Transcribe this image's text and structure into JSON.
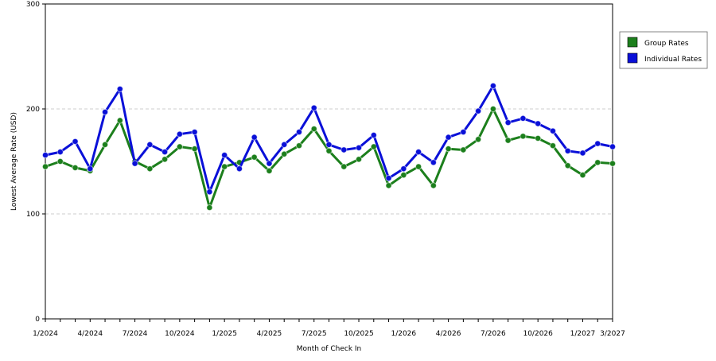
{
  "chart_data": {
    "type": "line",
    "xlabel": "Month of Check In",
    "ylabel": "Lowest Average Rate (USD)",
    "ylim": [
      0,
      300
    ],
    "yticks": [
      0,
      100,
      200,
      300
    ],
    "grid": "horizontal-dashed",
    "legend_position": "right",
    "x_start": "1/2024",
    "x_end": "3/2027",
    "x_tick_labels": [
      "1/2024",
      "4/2024",
      "7/2024",
      "10/2024",
      "1/2025",
      "4/2025",
      "7/2025",
      "10/2025",
      "1/2026",
      "4/2026",
      "7/2026",
      "10/2026",
      "1/2027",
      "3/2027"
    ],
    "series": [
      {
        "name": "Group Rates",
        "color": "#1c7f1c",
        "values": [
          145,
          150,
          144,
          141,
          166,
          189,
          150,
          143,
          152,
          164,
          162,
          106,
          145,
          149,
          154,
          141,
          157,
          165,
          181,
          160,
          145,
          152,
          164,
          127,
          137,
          145,
          127,
          162,
          161,
          171,
          200,
          170,
          174,
          172,
          165,
          146,
          137,
          149,
          148
        ]
      },
      {
        "name": "Individual Rates",
        "color": "#0a10d8",
        "values": [
          156,
          159,
          169,
          143,
          197,
          219,
          148,
          166,
          159,
          176,
          178,
          121,
          156,
          143,
          173,
          148,
          166,
          178,
          201,
          166,
          161,
          163,
          175,
          134,
          143,
          159,
          149,
          173,
          178,
          198,
          222,
          187,
          191,
          186,
          179,
          160,
          158,
          167,
          164
        ]
      }
    ]
  }
}
